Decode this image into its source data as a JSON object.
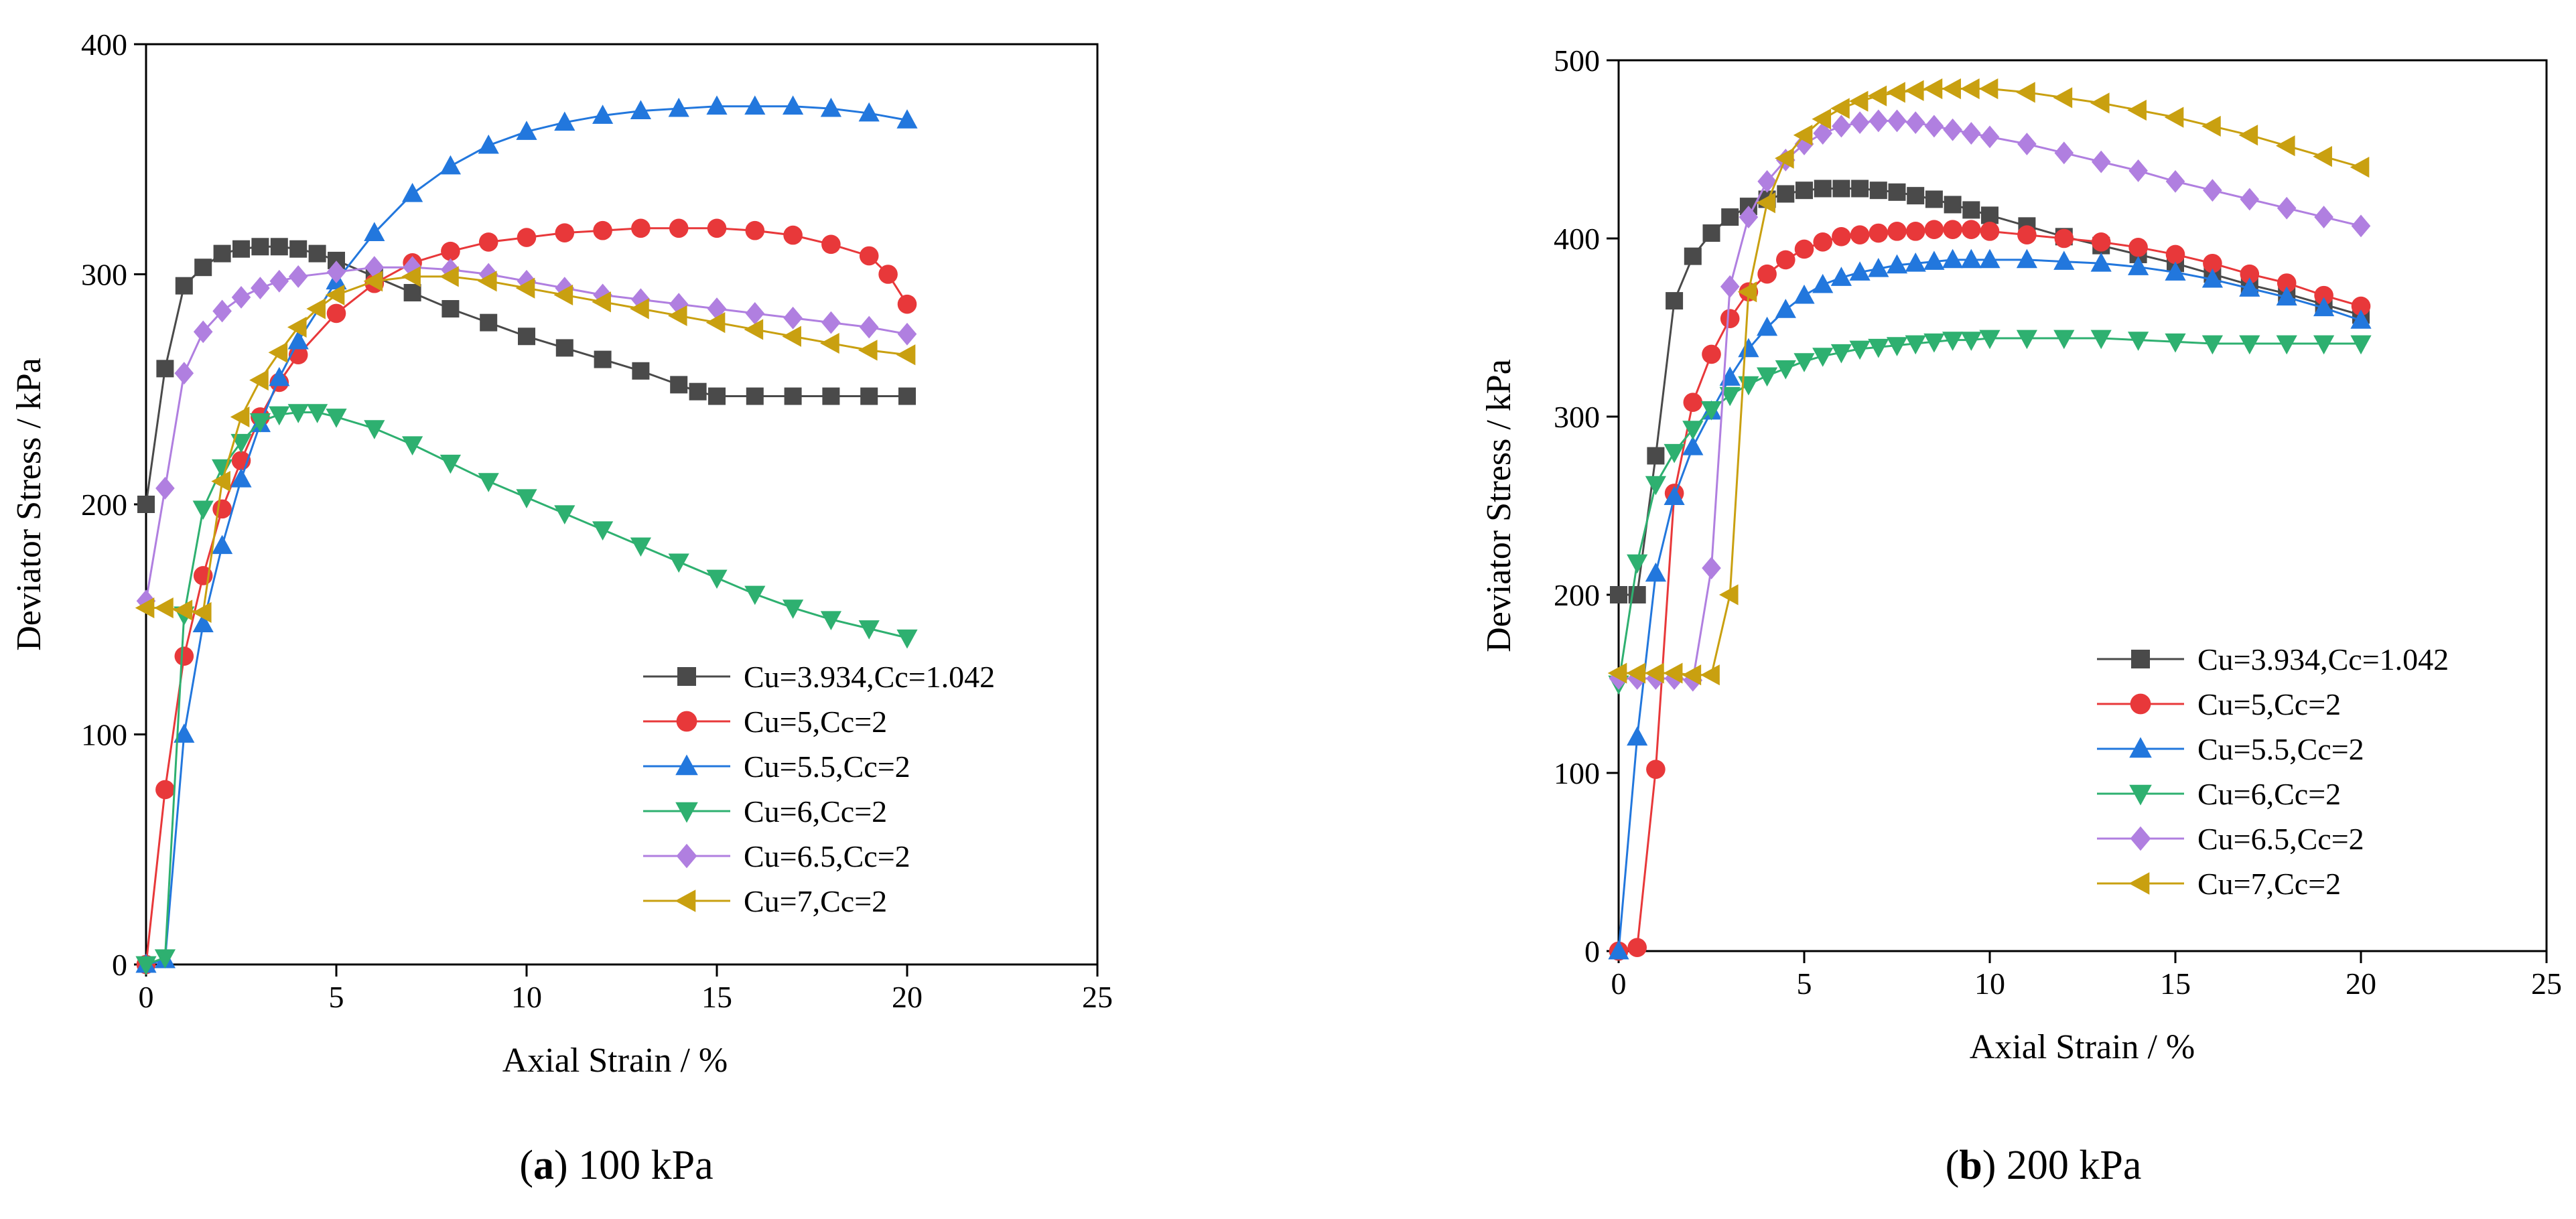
{
  "captions": [
    {
      "letter": "a",
      "text": " 100 kPa"
    },
    {
      "letter": "b",
      "text": " 200 kPa"
    }
  ],
  "legend": [
    "Cu=3.934,Cc=1.042",
    "Cu=5,Cc=2",
    "Cu=5.5,Cc=2",
    "Cu=6,Cc=2",
    "Cu=6.5,Cc=2",
    "Cu=7,Cc=2"
  ],
  "series_style": [
    {
      "color": "#4a4a4a",
      "marker": "square"
    },
    {
      "color": "#e8383a",
      "marker": "circle"
    },
    {
      "color": "#2277dd",
      "marker": "triangle-up"
    },
    {
      "color": "#2eb070",
      "marker": "triangle-down"
    },
    {
      "color": "#b07fe0",
      "marker": "diamond"
    },
    {
      "color": "#c9a010",
      "marker": "triangle-left"
    }
  ],
  "chart_data": [
    {
      "type": "line",
      "xlabel": "Axial Strain / %",
      "ylabel": "Deviator Stress / kPa",
      "xlim": [
        0,
        25
      ],
      "ylim": [
        0,
        400
      ],
      "xticks": [
        0,
        5,
        10,
        15,
        20,
        25
      ],
      "yticks": [
        0,
        100,
        200,
        300,
        400
      ],
      "legend_position": "lower-right",
      "grid": false,
      "series": [
        {
          "name": "Cu=3.934,Cc=1.042",
          "x": [
            0,
            0.5,
            1,
            1.5,
            2,
            2.5,
            3,
            3.5,
            4,
            4.5,
            5,
            6,
            7,
            8,
            9,
            10,
            11,
            12,
            13,
            14,
            14.5,
            15,
            16,
            17,
            18,
            19,
            20
          ],
          "y": [
            200,
            259,
            295,
            303,
            309,
            311,
            312,
            312,
            311,
            309,
            306,
            299,
            292,
            285,
            279,
            273,
            268,
            263,
            258,
            252,
            249,
            247,
            247,
            247,
            247,
            247,
            247
          ]
        },
        {
          "name": "Cu=5,Cc=2",
          "x": [
            0,
            0.5,
            1,
            1.5,
            2,
            2.5,
            3,
            3.5,
            4,
            5,
            6,
            7,
            8,
            9,
            10,
            11,
            12,
            13,
            14,
            15,
            16,
            17,
            18,
            19,
            19.5,
            20
          ],
          "y": [
            0,
            76,
            134,
            169,
            198,
            219,
            238,
            253,
            265,
            283,
            296,
            305,
            310,
            314,
            316,
            318,
            319,
            320,
            320,
            320,
            319,
            317,
            313,
            308,
            300,
            287
          ]
        },
        {
          "name": "Cu=5.5,Cc=2",
          "x": [
            0,
            0.5,
            1,
            1.5,
            2,
            2.5,
            3,
            3.5,
            4,
            5,
            6,
            7,
            8,
            9,
            10,
            11,
            12,
            13,
            14,
            15,
            16,
            17,
            18,
            19,
            20
          ],
          "y": [
            0,
            2,
            100,
            148,
            182,
            211,
            235,
            255,
            271,
            297,
            318,
            335,
            347,
            356,
            362,
            366,
            369,
            371,
            372,
            373,
            373,
            373,
            372,
            370,
            367
          ]
        },
        {
          "name": "Cu=6,Cc=2",
          "x": [
            0,
            0.5,
            1,
            1.5,
            2,
            2.5,
            3,
            3.5,
            4,
            4.5,
            5,
            6,
            7,
            8,
            9,
            10,
            11,
            12,
            13,
            14,
            15,
            16,
            17,
            18,
            19,
            20
          ],
          "y": [
            0,
            3,
            152,
            198,
            216,
            227,
            236,
            239,
            240,
            240,
            238,
            233,
            226,
            218,
            210,
            203,
            196,
            189,
            182,
            175,
            168,
            161,
            155,
            150,
            146,
            142
          ]
        },
        {
          "name": "Cu=6.5,Cc=2",
          "x": [
            0,
            0.5,
            1,
            1.5,
            2,
            2.5,
            3,
            3.5,
            4,
            5,
            6,
            7,
            8,
            9,
            10,
            11,
            12,
            13,
            14,
            15,
            16,
            17,
            18,
            19,
            20
          ],
          "y": [
            158,
            207,
            257,
            275,
            284,
            290,
            294,
            297,
            299,
            301,
            303,
            303,
            302,
            300,
            297,
            294,
            291,
            289,
            287,
            285,
            283,
            281,
            279,
            277,
            274
          ]
        },
        {
          "name": "Cu=7,Cc=2",
          "x": [
            0,
            0.5,
            1,
            1.5,
            2,
            2.5,
            3,
            3.5,
            4,
            4.5,
            5,
            6,
            7,
            8,
            9,
            10,
            11,
            12,
            13,
            14,
            15,
            16,
            17,
            18,
            19,
            20
          ],
          "y": [
            155,
            155,
            154,
            153,
            210,
            238,
            254,
            266,
            277,
            285,
            291,
            297,
            299,
            299,
            297,
            294,
            291,
            288,
            285,
            282,
            279,
            276,
            273,
            270,
            267,
            265
          ]
        }
      ]
    },
    {
      "type": "line",
      "xlabel": "Axial Strain / %",
      "ylabel": "Deviator Stress / kPa",
      "xlim": [
        0,
        25
      ],
      "ylim": [
        0,
        500
      ],
      "xticks": [
        0,
        5,
        10,
        15,
        20,
        25
      ],
      "yticks": [
        0,
        100,
        200,
        300,
        400,
        500
      ],
      "legend_position": "lower-right",
      "grid": false,
      "series": [
        {
          "name": "Cu=3.934,Cc=1.042",
          "x": [
            0,
            0.5,
            1,
            1.5,
            2,
            2.5,
            3,
            3.5,
            4,
            4.5,
            5,
            5.5,
            6,
            6.5,
            7,
            7.5,
            8,
            8.5,
            9,
            9.5,
            10,
            11,
            12,
            13,
            14,
            15,
            16,
            17,
            18,
            19,
            20
          ],
          "y": [
            200,
            200,
            278,
            365,
            390,
            403,
            412,
            418,
            422,
            425,
            427,
            428,
            428,
            428,
            427,
            426,
            424,
            422,
            419,
            416,
            413,
            407,
            401,
            396,
            391,
            386,
            380,
            374,
            369,
            363,
            357
          ]
        },
        {
          "name": "Cu=5,Cc=2",
          "x": [
            0,
            0.5,
            1,
            1.5,
            2,
            2.5,
            3,
            3.5,
            4,
            4.5,
            5,
            5.5,
            6,
            6.5,
            7,
            7.5,
            8,
            8.5,
            9,
            9.5,
            10,
            11,
            12,
            13,
            14,
            15,
            16,
            17,
            18,
            19,
            20
          ],
          "y": [
            0,
            2,
            102,
            257,
            308,
            335,
            355,
            370,
            380,
            388,
            394,
            398,
            401,
            402,
            403,
            404,
            404,
            405,
            405,
            405,
            404,
            402,
            400,
            398,
            395,
            391,
            386,
            380,
            375,
            368,
            362
          ]
        },
        {
          "name": "Cu=5.5,Cc=2",
          "x": [
            0,
            0.5,
            1,
            1.5,
            2,
            2.5,
            3,
            3.5,
            4,
            4.5,
            5,
            5.5,
            6,
            6.5,
            7,
            7.5,
            8,
            8.5,
            9,
            9.5,
            10,
            11,
            12,
            13,
            14,
            15,
            16,
            17,
            18,
            19,
            20
          ],
          "y": [
            0,
            120,
            212,
            255,
            283,
            303,
            322,
            338,
            350,
            360,
            368,
            374,
            378,
            381,
            383,
            385,
            386,
            387,
            388,
            388,
            388,
            388,
            387,
            386,
            384,
            381,
            377,
            372,
            367,
            361,
            354
          ]
        },
        {
          "name": "Cu=6,Cc=2",
          "x": [
            0,
            0.5,
            1,
            1.5,
            2,
            2.5,
            3,
            3.5,
            4,
            4.5,
            5,
            5.5,
            6,
            6.5,
            7,
            7.5,
            8,
            8.5,
            9,
            9.5,
            10,
            11,
            12,
            13,
            14,
            15,
            16,
            17,
            18,
            19,
            20
          ],
          "y": [
            150,
            218,
            262,
            280,
            293,
            304,
            312,
            318,
            323,
            327,
            331,
            334,
            336,
            338,
            339,
            340,
            341,
            342,
            343,
            343,
            344,
            344,
            344,
            344,
            343,
            342,
            341,
            341,
            341,
            341,
            341
          ]
        },
        {
          "name": "Cu=6.5,Cc=2",
          "x": [
            0,
            0.5,
            1,
            1.5,
            2,
            2.5,
            3,
            3.5,
            4,
            4.5,
            5,
            5.5,
            6,
            6.5,
            7,
            7.5,
            8,
            8.5,
            9,
            9.5,
            10,
            11,
            12,
            13,
            14,
            15,
            16,
            17,
            18,
            19,
            20
          ],
          "y": [
            153,
            153,
            153,
            153,
            152,
            215,
            373,
            412,
            432,
            444,
            453,
            459,
            463,
            465,
            466,
            466,
            465,
            463,
            461,
            459,
            457,
            453,
            448,
            443,
            438,
            432,
            427,
            422,
            417,
            412,
            407
          ]
        },
        {
          "name": "Cu=7,Cc=2",
          "x": [
            0,
            0.5,
            1,
            1.5,
            2,
            2.5,
            3,
            3.5,
            4,
            4.5,
            5,
            5.5,
            6,
            6.5,
            7,
            7.5,
            8,
            8.5,
            9,
            9.5,
            10,
            11,
            12,
            13,
            14,
            15,
            16,
            17,
            18,
            19,
            20
          ],
          "y": [
            156,
            156,
            156,
            156,
            155,
            155,
            200,
            370,
            420,
            445,
            458,
            467,
            473,
            477,
            480,
            482,
            483,
            484,
            484,
            484,
            484,
            482,
            479,
            476,
            472,
            468,
            463,
            458,
            452,
            446,
            440
          ]
        }
      ]
    }
  ]
}
